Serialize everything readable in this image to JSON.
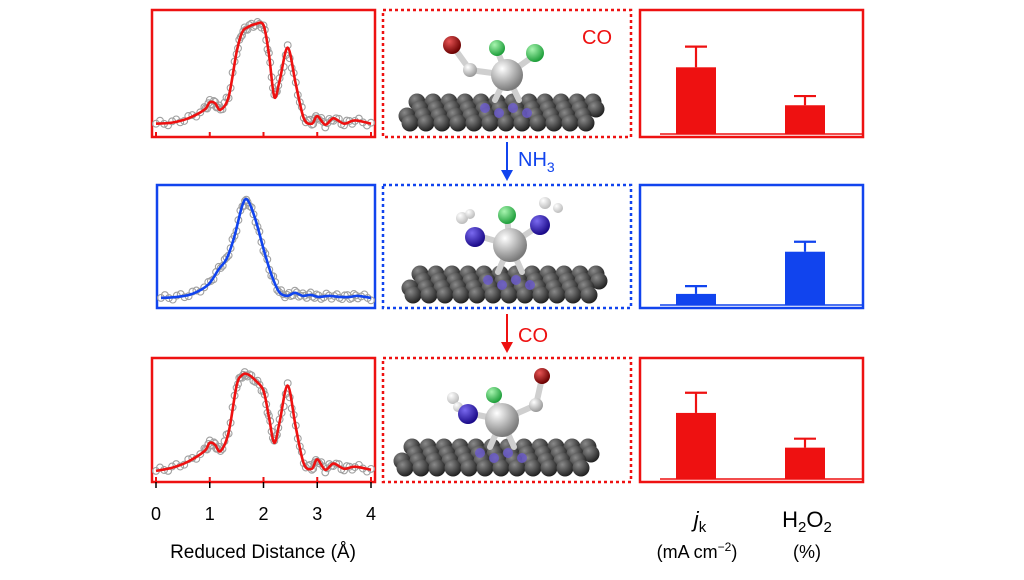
{
  "colors": {
    "co": "#ee1111",
    "nh3": "#1144ee",
    "fit_points": "#a0a0a0",
    "carbon": "#3a3a3a",
    "nitrogen_sub": "#6a5acd",
    "metal": "#b8b8b8",
    "chlorine": "#2ecc40",
    "oxygen": "#aa0000",
    "amine_n": "#3311cc",
    "hydrogen": "#ffffff"
  },
  "labels": {
    "co_tag": "CO",
    "nh3_arrow": "NH",
    "nh3_sub": "3",
    "co_arrow": "CO",
    "xlabel": "Reduced Distance (Å)",
    "jk_main": "j",
    "jk_sub": "k",
    "jk_unit_main": "(mA cm",
    "jk_unit_sup": "−2",
    "jk_unit_close": ")",
    "h2o2_h": "H",
    "h2o2_2a": "2",
    "h2o2_o": "O",
    "h2o2_2b": "2",
    "h2o2_unit": "(%)"
  },
  "chart_data": [
    {
      "type": "line",
      "panel": "EXAFS state 1 (CO)",
      "xlim": [
        0,
        4
      ],
      "ticks": [
        "0",
        "1",
        "2",
        "3",
        "4"
      ],
      "color_key": "co",
      "x": [
        0,
        0.3,
        0.6,
        0.9,
        1.0,
        1.1,
        1.2,
        1.35,
        1.5,
        1.6,
        1.7,
        1.85,
        2.0,
        2.1,
        2.2,
        2.3,
        2.45,
        2.6,
        2.75,
        2.9,
        3.0,
        3.15,
        3.3,
        3.5,
        3.7,
        4.0
      ],
      "y": [
        0.05,
        0.06,
        0.1,
        0.18,
        0.25,
        0.24,
        0.18,
        0.3,
        0.72,
        0.9,
        0.95,
        0.98,
        0.97,
        0.7,
        0.3,
        0.45,
        0.76,
        0.42,
        0.1,
        0.05,
        0.12,
        0.04,
        0.1,
        0.05,
        0.08,
        0.05
      ]
    },
    {
      "type": "line",
      "panel": "EXAFS state 2 (NH3)",
      "xlim": [
        0,
        4
      ],
      "ticks": [
        "0",
        "1",
        "2",
        "3",
        "4"
      ],
      "color_key": "nh3",
      "x": [
        0,
        0.3,
        0.6,
        0.9,
        1.1,
        1.25,
        1.4,
        1.55,
        1.65,
        1.8,
        1.95,
        2.1,
        2.25,
        2.4,
        2.55,
        2.7,
        2.85,
        3.0,
        3.2,
        3.4,
        3.6,
        3.75,
        4.0
      ],
      "y": [
        0.02,
        0.03,
        0.06,
        0.15,
        0.3,
        0.4,
        0.62,
        0.92,
        0.97,
        0.78,
        0.5,
        0.25,
        0.08,
        0.04,
        0.07,
        0.04,
        0.05,
        0.03,
        0.04,
        0.03,
        0.03,
        0.04,
        0.02
      ]
    },
    {
      "type": "line",
      "panel": "EXAFS state 3 (CO)",
      "xlim": [
        0,
        4
      ],
      "ticks": [
        "0",
        "1",
        "2",
        "3",
        "4"
      ],
      "color_key": "co",
      "x": [
        0,
        0.3,
        0.6,
        0.9,
        1.0,
        1.1,
        1.2,
        1.35,
        1.5,
        1.6,
        1.7,
        1.85,
        2.0,
        2.1,
        2.2,
        2.3,
        2.45,
        2.6,
        2.75,
        2.9,
        3.0,
        3.15,
        3.3,
        3.5,
        3.7,
        4.0
      ],
      "y": [
        0.03,
        0.06,
        0.12,
        0.22,
        0.3,
        0.28,
        0.22,
        0.4,
        0.85,
        0.95,
        0.96,
        0.9,
        0.8,
        0.55,
        0.3,
        0.5,
        0.85,
        0.45,
        0.1,
        0.05,
        0.14,
        0.04,
        0.1,
        0.05,
        0.07,
        0.04
      ]
    },
    {
      "type": "bar",
      "panel": "activity state 1 (CO)",
      "categories": [
        "jk",
        "H2O2"
      ],
      "values": [
        0.58,
        0.25
      ],
      "errors": [
        0.18,
        0.08
      ],
      "ylim": [
        0,
        1
      ],
      "color_key": "co"
    },
    {
      "type": "bar",
      "panel": "activity state 2 (NH3)",
      "categories": [
        "jk",
        "H2O2"
      ],
      "values": [
        0.1,
        0.48
      ],
      "errors": [
        0.07,
        0.09
      ],
      "ylim": [
        0,
        1
      ],
      "color_key": "nh3"
    },
    {
      "type": "bar",
      "panel": "activity state 3 (CO)",
      "categories": [
        "jk",
        "H2O2"
      ],
      "values": [
        0.59,
        0.28
      ],
      "errors": [
        0.18,
        0.08
      ],
      "ylim": [
        0,
        1
      ],
      "color_key": "co"
    }
  ]
}
